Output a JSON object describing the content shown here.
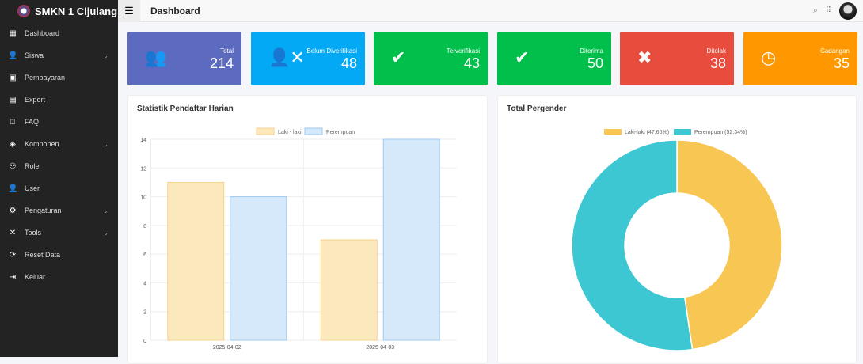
{
  "app": {
    "brand": "SMKN 1 Cijulang"
  },
  "sidebar": {
    "items": [
      {
        "label": "Dashboard",
        "icon": "dashboard-icon",
        "glyph": "▦",
        "chev": false
      },
      {
        "label": "Siswa",
        "icon": "user-plus-icon",
        "glyph": "👤",
        "chev": true
      },
      {
        "label": "Pembayaran",
        "icon": "money-icon",
        "glyph": "▣",
        "chev": false
      },
      {
        "label": "Export",
        "icon": "file-icon",
        "glyph": "▤",
        "chev": false
      },
      {
        "label": "FAQ",
        "icon": "comment-icon",
        "glyph": "⍰",
        "chev": false
      },
      {
        "label": "Komponen",
        "icon": "layers-icon",
        "glyph": "◈",
        "chev": true
      },
      {
        "label": "Role",
        "icon": "sitemap-icon",
        "glyph": "⚇",
        "chev": false
      },
      {
        "label": "User",
        "icon": "user-gear-icon",
        "glyph": "👤",
        "chev": false
      },
      {
        "label": "Pengaturan",
        "icon": "gear-icon",
        "glyph": "⚙",
        "chev": true
      },
      {
        "label": "Tools",
        "icon": "tools-icon",
        "glyph": "✕",
        "chev": true
      },
      {
        "label": "Reset Data",
        "icon": "refresh-icon",
        "glyph": "⟳",
        "chev": false
      },
      {
        "label": "Keluar",
        "icon": "logout-icon",
        "glyph": "⇥",
        "chev": false
      }
    ]
  },
  "header": {
    "title": "Dashboard"
  },
  "cards": [
    {
      "label": "Total",
      "value": "214",
      "color": "#5c6bc0",
      "icon": "users-icon",
      "glyph": "👥"
    },
    {
      "label": "Belum Diverifikasi",
      "value": "48",
      "color": "#03a9f4",
      "icon": "user-times-icon",
      "glyph": "👤✕"
    },
    {
      "label": "Terverifikasi",
      "value": "43",
      "color": "#00c04b",
      "icon": "check-icon",
      "glyph": "✔"
    },
    {
      "label": "Diterima",
      "value": "50",
      "color": "#00c04b",
      "icon": "check-icon",
      "glyph": "✔"
    },
    {
      "label": "Ditolak",
      "value": "38",
      "color": "#e74c3c",
      "icon": "times-icon",
      "glyph": "✖"
    },
    {
      "label": "Cadangan",
      "value": "35",
      "color": "#ff9800",
      "icon": "clock-icon",
      "glyph": "◷"
    }
  ],
  "panels": {
    "left_title": "Statistik Pendaftar Harian",
    "right_title": "Total Pergender"
  },
  "chart_data": [
    {
      "type": "bar",
      "categories": [
        "2025-04-02",
        "2025-04-03"
      ],
      "series": [
        {
          "name": "Laki - laki",
          "values": [
            11,
            7
          ],
          "color": "#fbe8bd"
        },
        {
          "name": "Perempuan",
          "values": [
            10,
            14
          ],
          "color": "#d6e9fa"
        }
      ],
      "ylim": [
        0,
        14
      ],
      "yticks": [
        0,
        2,
        4,
        6,
        8,
        10,
        12,
        14
      ],
      "grid": true,
      "legend": "top"
    },
    {
      "type": "pie",
      "donut": true,
      "labels": [
        "Laki-laki (47.66%)",
        "Perempuan (52.34%)"
      ],
      "values": [
        47.66,
        52.34
      ],
      "colors": [
        "#f8c653",
        "#3cc7d3"
      ],
      "legend": "top"
    }
  ]
}
